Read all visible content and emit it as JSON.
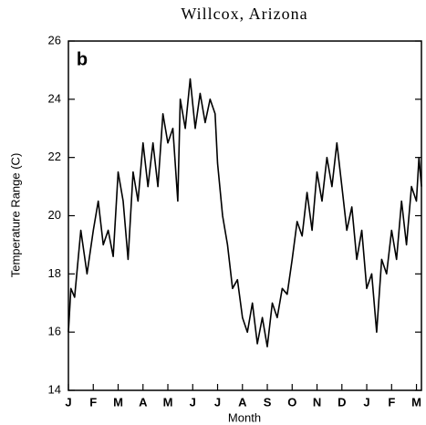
{
  "chart_data": {
    "type": "line",
    "title": "Willcox, Arizona",
    "annotation": "b",
    "xlabel": "Month",
    "ylabel": "Temperature Range (C)",
    "xlim": [
      0,
      14.2
    ],
    "ylim": [
      14,
      26
    ],
    "xticks": [
      {
        "value": 0,
        "label": "J"
      },
      {
        "value": 1,
        "label": "F"
      },
      {
        "value": 2,
        "label": "M"
      },
      {
        "value": 3,
        "label": "A"
      },
      {
        "value": 4,
        "label": "M"
      },
      {
        "value": 5,
        "label": "J"
      },
      {
        "value": 6,
        "label": "J"
      },
      {
        "value": 7,
        "label": "A"
      },
      {
        "value": 8,
        "label": "S"
      },
      {
        "value": 9,
        "label": "O"
      },
      {
        "value": 10,
        "label": "N"
      },
      {
        "value": 11,
        "label": "D"
      },
      {
        "value": 12,
        "label": "J"
      },
      {
        "value": 13,
        "label": "F"
      },
      {
        "value": 14,
        "label": "M"
      }
    ],
    "yticks": [
      14,
      16,
      18,
      20,
      22,
      24,
      26
    ],
    "series": [
      {
        "color": "#000000",
        "x": [
          0,
          0.1,
          0.25,
          0.5,
          0.75,
          1.0,
          1.2,
          1.4,
          1.6,
          1.8,
          2.0,
          2.2,
          2.4,
          2.6,
          2.8,
          3.0,
          3.2,
          3.4,
          3.6,
          3.8,
          4.0,
          4.2,
          4.4,
          4.5,
          4.7,
          4.9,
          5.1,
          5.3,
          5.5,
          5.7,
          5.9,
          6.0,
          6.2,
          6.4,
          6.6,
          6.8,
          7.0,
          7.2,
          7.4,
          7.6,
          7.8,
          8.0,
          8.2,
          8.4,
          8.6,
          8.8,
          9.0,
          9.2,
          9.4,
          9.6,
          9.8,
          10.0,
          10.2,
          10.4,
          10.6,
          10.8,
          11.0,
          11.2,
          11.4,
          11.6,
          11.8,
          12.0,
          12.2,
          12.4,
          12.6,
          12.8,
          13.0,
          13.2,
          13.4,
          13.6,
          13.8,
          14.0,
          14.1,
          14.2
        ],
        "values": [
          16.0,
          17.5,
          17.2,
          19.5,
          18.0,
          19.5,
          20.5,
          19.0,
          19.5,
          18.6,
          21.5,
          20.5,
          18.5,
          21.5,
          20.5,
          22.5,
          21.0,
          22.5,
          21.0,
          23.5,
          22.5,
          23.0,
          20.5,
          24.0,
          23.0,
          24.7,
          23.0,
          24.2,
          23.2,
          24.0,
          23.5,
          21.8,
          20.0,
          19.0,
          17.5,
          17.8,
          16.5,
          16.0,
          17.0,
          15.6,
          16.5,
          15.5,
          17.0,
          16.5,
          17.5,
          17.3,
          18.5,
          19.8,
          19.3,
          20.8,
          19.5,
          21.5,
          20.5,
          22.0,
          21.0,
          22.5,
          21.0,
          19.5,
          20.3,
          18.5,
          19.5,
          17.5,
          18.0,
          16.0,
          18.5,
          18.0,
          19.5,
          18.5,
          20.5,
          19.0,
          21.0,
          20.5,
          22.0,
          21.0
        ]
      }
    ]
  }
}
